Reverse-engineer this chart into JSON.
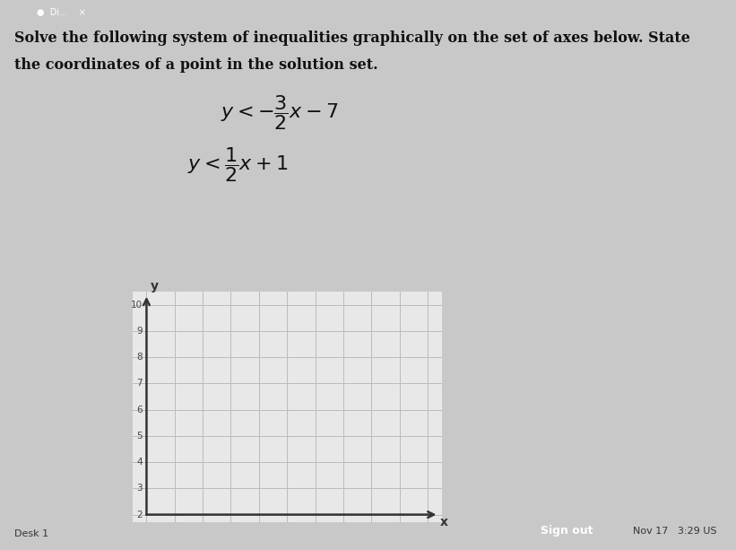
{
  "title_line1": "Solve the following system of inequalities graphically on the set of axes below. State",
  "title_line2": "the coordinates of a point in the solution set.",
  "ineq1": "y < -\\dfrac{3}{2}x - 7",
  "ineq2": "y < \\dfrac{1}{2}x + 1",
  "xlim": [
    0,
    10
  ],
  "ylim": [
    2,
    10
  ],
  "ytick_vals": [
    2,
    3,
    4,
    5,
    6,
    7,
    8,
    9,
    10
  ],
  "grid_color": "#bbbbbb",
  "grid_bg": "#e8e8e8",
  "page_bg": "#c8c8c8",
  "axis_color": "#333333",
  "text_color": "#111111"
}
